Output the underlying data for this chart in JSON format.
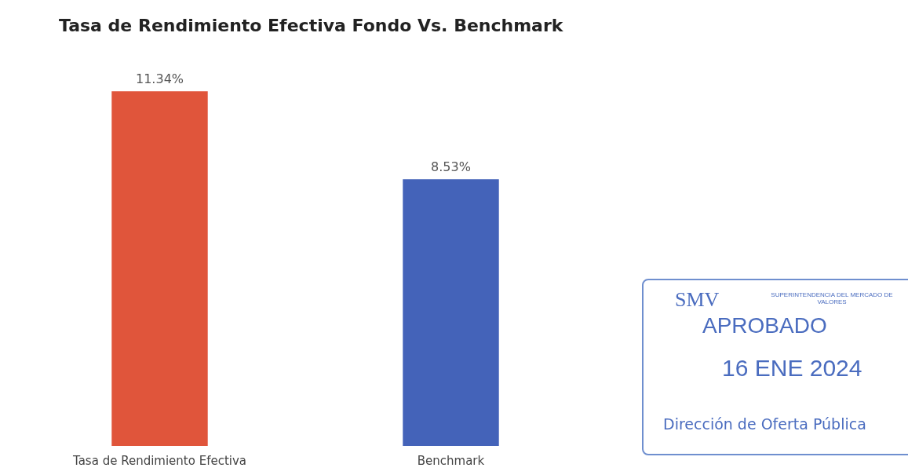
{
  "chart_data": {
    "type": "bar",
    "title": "Tasa de Rendimiento Efectiva Fondo Vs. Benchmark",
    "categories": [
      "Tasa de Rendimiento Efectiva",
      "Benchmark"
    ],
    "values": [
      11.34,
      8.53
    ],
    "colors": [
      "#e0553b",
      "#4463b9"
    ],
    "value_labels": [
      "11.34%",
      "8.53%"
    ],
    "relative": false,
    "annotations": [
      "SMV",
      "SUPERINTENDENCIA DEL MERCADO DE VALORES",
      "APROBADO",
      "16 ENE 2024",
      "Dirección de Oferta Pública"
    ]
  }
}
